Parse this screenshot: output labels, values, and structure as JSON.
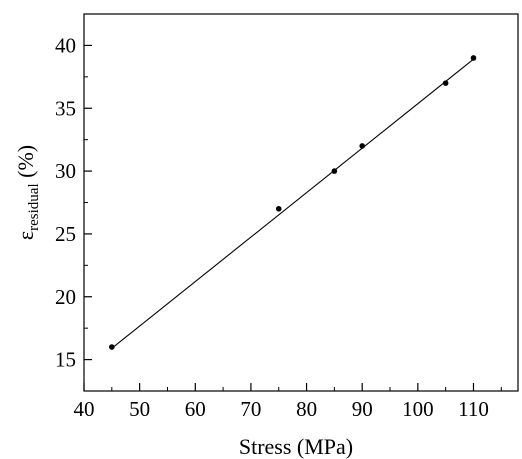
{
  "chart_data": {
    "type": "line",
    "title": "",
    "xlabel": "Stress (MPa)",
    "ylabel": {
      "symbol": "ε",
      "subscript": "residual",
      "unit": " (%)"
    },
    "xlim": [
      40,
      118
    ],
    "ylim": [
      12.5,
      42.5
    ],
    "xticks": [
      40,
      50,
      60,
      70,
      80,
      90,
      100,
      110
    ],
    "yticks": [
      15,
      20,
      25,
      30,
      35,
      40
    ],
    "xminor_step": 5,
    "yminor_step": 2.5,
    "grid": false,
    "legend": "none",
    "series": [
      {
        "x": [
          45,
          75,
          85,
          90,
          105,
          110
        ],
        "y": [
          16,
          27,
          30,
          32,
          37,
          39
        ],
        "marker": "dot",
        "color": "#000000"
      }
    ],
    "fit_line": {
      "x": [
        45,
        110
      ],
      "y": [
        15.9,
        38.9
      ],
      "color": "#000000"
    }
  }
}
